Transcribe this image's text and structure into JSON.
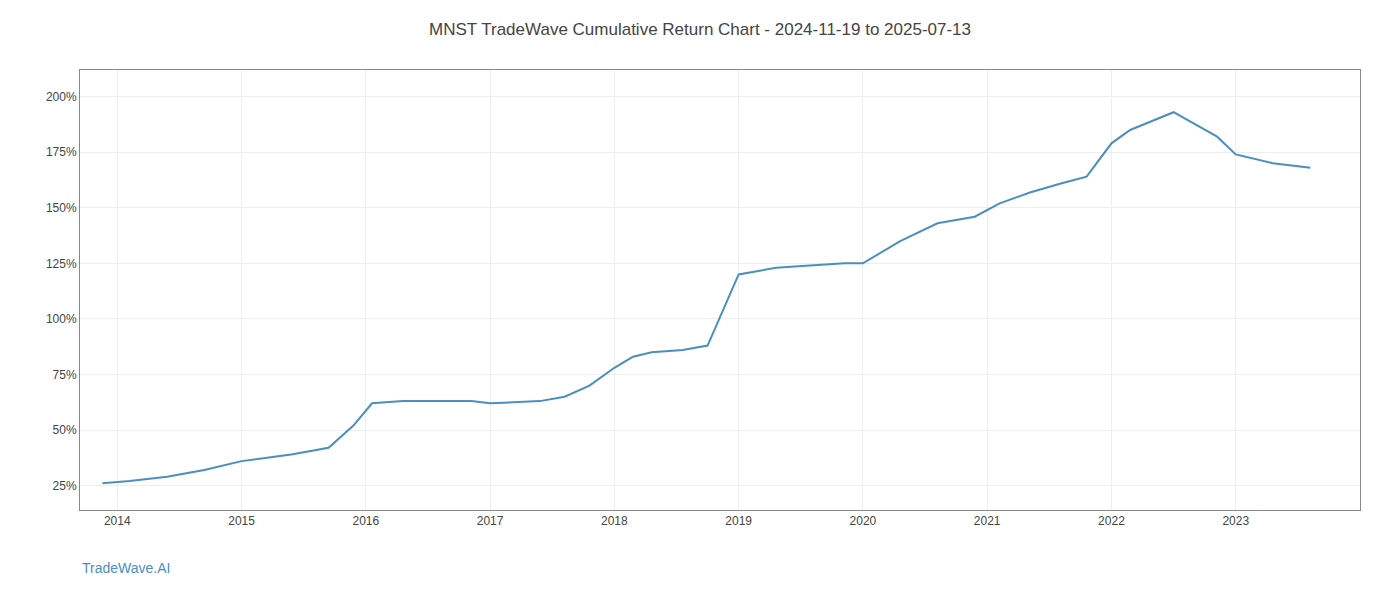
{
  "chart_data": {
    "type": "line",
    "title": "MNST TradeWave Cumulative Return Chart - 2024-11-19 to 2025-07-13",
    "annotations": [
      "TradeWave.AI"
    ],
    "color": "#4a8fc0",
    "grid": true,
    "x": [
      2013.88,
      2014.1,
      2014.4,
      2014.7,
      2015.0,
      2015.4,
      2015.7,
      2015.9,
      2016.05,
      2016.3,
      2016.6,
      2016.85,
      2017.0,
      2017.4,
      2017.6,
      2017.8,
      2018.0,
      2018.15,
      2018.3,
      2018.55,
      2018.75,
      2019.0,
      2019.3,
      2019.6,
      2019.85,
      2020.0,
      2020.3,
      2020.6,
      2020.9,
      2021.1,
      2021.35,
      2021.6,
      2021.8,
      2022.0,
      2022.15,
      2022.5,
      2022.85,
      2023.0,
      2023.3,
      2023.6
    ],
    "values": [
      26,
      27,
      29,
      32,
      36,
      39,
      42,
      52,
      62,
      63,
      63,
      63,
      62,
      63,
      65,
      70,
      78,
      83,
      85,
      86,
      88,
      120,
      123,
      124,
      125,
      125,
      135,
      143,
      146,
      152,
      157,
      161,
      164,
      179,
      185,
      193,
      182,
      174,
      170,
      168
    ],
    "xlim": [
      2013.7,
      2024.0
    ],
    "xticks": [
      2014,
      2015,
      2016,
      2017,
      2018,
      2019,
      2020,
      2021,
      2022,
      2023
    ],
    "ylim": [
      14,
      212
    ],
    "yticks": [
      {
        "value": 25,
        "label": "25%"
      },
      {
        "value": 50,
        "label": "50%"
      },
      {
        "value": 75,
        "label": "75%"
      },
      {
        "value": 100,
        "label": "100%"
      },
      {
        "value": 125,
        "label": "125%"
      },
      {
        "value": 150,
        "label": "150%"
      },
      {
        "value": 175,
        "label": "175%"
      },
      {
        "value": 200,
        "label": "200%"
      }
    ]
  }
}
